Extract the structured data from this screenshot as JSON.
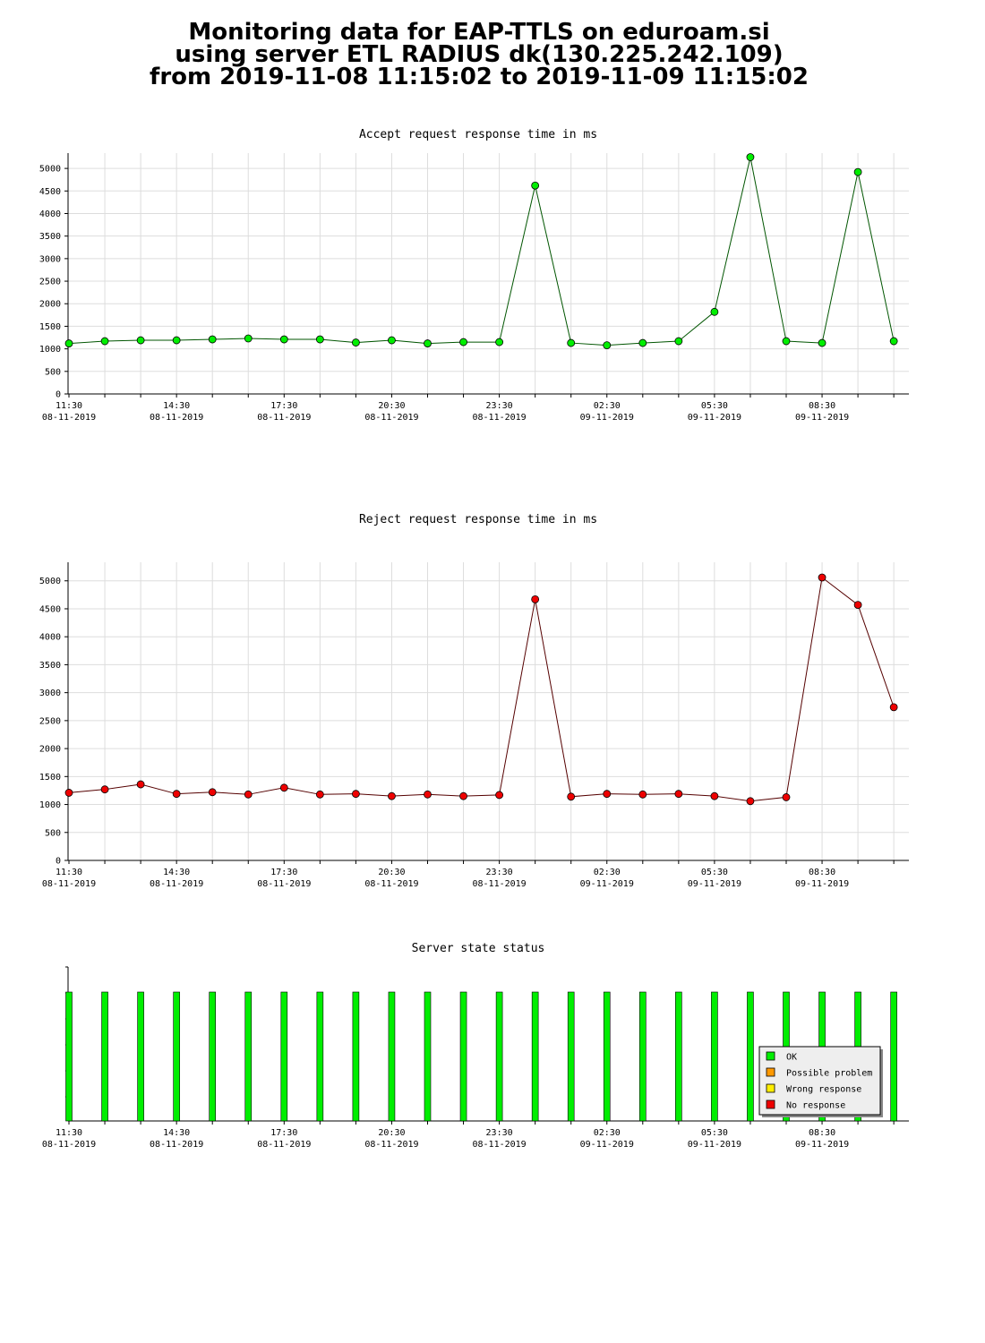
{
  "header": {
    "line1": "Monitoring data for EAP-TTLS on eduroam.si",
    "line2": "using server ETL RADIUS dk(130.225.242.109)",
    "line3": "from 2019-11-08 11:15:02 to 2019-11-09 11:15:02"
  },
  "colors": {
    "accept_title": "#006600",
    "reject_title": "#660000",
    "state_title": "#660000",
    "accept_marker": "#00ee00",
    "reject_marker": "#ee0000",
    "ok": "#00ee00",
    "possible_problem": "#ff9900",
    "wrong_response": "#ffee00",
    "no_response": "#ee0000"
  },
  "chart_data": [
    {
      "type": "line",
      "title": "Accept request response time in ms",
      "xlabel": "",
      "ylabel": "",
      "ylim": [
        0,
        5300
      ],
      "yticks": [
        0,
        500,
        1000,
        1500,
        2000,
        2500,
        3000,
        3500,
        4000,
        4500,
        5000
      ],
      "xtick_labels": [
        {
          "time": "11:30",
          "date": "08-11-2019"
        },
        {
          "time": "14:30",
          "date": "08-11-2019"
        },
        {
          "time": "17:30",
          "date": "08-11-2019"
        },
        {
          "time": "20:30",
          "date": "08-11-2019"
        },
        {
          "time": "23:30",
          "date": "08-11-2019"
        },
        {
          "time": "02:30",
          "date": "09-11-2019"
        },
        {
          "time": "05:30",
          "date": "09-11-2019"
        },
        {
          "time": "08:30",
          "date": "09-11-2019"
        }
      ],
      "grid": true,
      "x": [
        "11:30",
        "12:30",
        "13:30",
        "14:30",
        "15:30",
        "16:30",
        "17:30",
        "18:30",
        "19:30",
        "20:30",
        "21:30",
        "22:30",
        "23:30",
        "00:30",
        "01:30",
        "02:30",
        "03:30",
        "04:30",
        "05:30",
        "06:30",
        "07:30",
        "08:30",
        "09:30",
        "10:30"
      ],
      "values": [
        1120,
        1170,
        1190,
        1190,
        1210,
        1230,
        1210,
        1210,
        1140,
        1190,
        1120,
        1150,
        1150,
        4620,
        1130,
        1080,
        1130,
        1170,
        1820,
        5250,
        1170,
        1130,
        4920,
        1170
      ]
    },
    {
      "type": "line",
      "title": "Reject request response time in ms",
      "xlabel": "",
      "ylabel": "",
      "ylim": [
        0,
        5300
      ],
      "yticks": [
        0,
        500,
        1000,
        1500,
        2000,
        2500,
        3000,
        3500,
        4000,
        4500,
        5000
      ],
      "xtick_labels": [
        {
          "time": "11:30",
          "date": "08-11-2019"
        },
        {
          "time": "14:30",
          "date": "08-11-2019"
        },
        {
          "time": "17:30",
          "date": "08-11-2019"
        },
        {
          "time": "20:30",
          "date": "08-11-2019"
        },
        {
          "time": "23:30",
          "date": "08-11-2019"
        },
        {
          "time": "02:30",
          "date": "09-11-2019"
        },
        {
          "time": "05:30",
          "date": "09-11-2019"
        },
        {
          "time": "08:30",
          "date": "09-11-2019"
        }
      ],
      "grid": true,
      "x": [
        "11:30",
        "12:30",
        "13:30",
        "14:30",
        "15:30",
        "16:30",
        "17:30",
        "18:30",
        "19:30",
        "20:30",
        "21:30",
        "22:30",
        "23:30",
        "00:30",
        "01:30",
        "02:30",
        "03:30",
        "04:30",
        "05:30",
        "06:30",
        "07:30",
        "08:30",
        "09:30",
        "10:30"
      ],
      "values": [
        1210,
        1270,
        1360,
        1190,
        1220,
        1180,
        1300,
        1180,
        1190,
        1150,
        1180,
        1150,
        1170,
        4670,
        1140,
        1190,
        1180,
        1190,
        1150,
        1060,
        1130,
        5060,
        4570,
        2740
      ]
    },
    {
      "type": "bar",
      "title": "Server state status",
      "xtick_labels": [
        {
          "time": "11:30",
          "date": "08-11-2019"
        },
        {
          "time": "14:30",
          "date": "08-11-2019"
        },
        {
          "time": "17:30",
          "date": "08-11-2019"
        },
        {
          "time": "20:30",
          "date": "08-11-2019"
        },
        {
          "time": "23:30",
          "date": "08-11-2019"
        },
        {
          "time": "02:30",
          "date": "09-11-2019"
        },
        {
          "time": "05:30",
          "date": "09-11-2019"
        },
        {
          "time": "08:30",
          "date": "09-11-2019"
        }
      ],
      "x": [
        "11:30",
        "12:30",
        "13:30",
        "14:30",
        "15:30",
        "16:30",
        "17:30",
        "18:30",
        "19:30",
        "20:30",
        "21:30",
        "22:30",
        "23:30",
        "00:30",
        "01:30",
        "02:30",
        "03:30",
        "04:30",
        "05:30",
        "06:30",
        "07:30",
        "08:30",
        "09:30",
        "10:30"
      ],
      "states": [
        "OK",
        "OK",
        "OK",
        "OK",
        "OK",
        "OK",
        "OK",
        "OK",
        "OK",
        "OK",
        "OK",
        "OK",
        "OK",
        "OK",
        "OK",
        "OK",
        "OK",
        "OK",
        "OK",
        "OK",
        "OK",
        "OK",
        "OK",
        "OK"
      ],
      "legend": [
        "OK",
        "Possible problem",
        "Wrong response",
        "No response"
      ],
      "legend_position": "bottom-right"
    }
  ]
}
